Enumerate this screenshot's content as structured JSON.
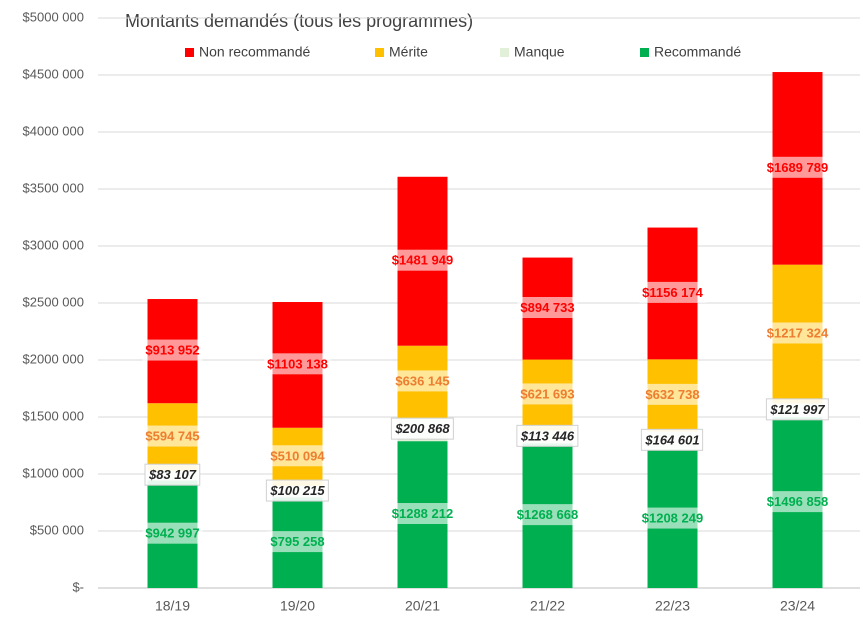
{
  "chart_data": {
    "type": "stacked_bar",
    "title": "Montants demandés (tous les programmes)",
    "categories": [
      "18/19",
      "19/20",
      "20/21",
      "21/22",
      "22/23",
      "23/24"
    ],
    "series": [
      {
        "name": "Recommandé",
        "color": "#00b050",
        "values": [
          942997,
          795258,
          1288212,
          1268668,
          1208249,
          1496858
        ],
        "value_labels": [
          "$942 997",
          "$795 258",
          "$1288 212",
          "$1268 668",
          "$1208 249",
          "$1496 858"
        ]
      },
      {
        "name": "Manque",
        "color": "#e2f0d9",
        "values": [
          83107,
          100215,
          200868,
          113446,
          164601,
          121997
        ],
        "value_labels": [
          "$83 107",
          "$100 215",
          "$200 868",
          "$113 446",
          "$164 601",
          "$121 997"
        ]
      },
      {
        "name": "Mérite",
        "color": "#ffc000",
        "values": [
          594745,
          510094,
          636145,
          621693,
          632738,
          1217324
        ],
        "value_labels": [
          "$594 745",
          "$510 094",
          "$636 145",
          "$621 693",
          "$632 738",
          "$1217 324"
        ]
      },
      {
        "name": "Non recommandé",
        "color": "#ff0000",
        "values": [
          913952,
          1103138,
          1481949,
          894733,
          1156174,
          1689789
        ],
        "value_labels": [
          "$913 952",
          "$1103 138",
          "$1481 949",
          "$894 733",
          "$1156 174",
          "$1689 789"
        ]
      }
    ],
    "ylim": [
      0,
      5000000
    ],
    "yticks": [
      {
        "value": 0,
        "label": "$-"
      },
      {
        "value": 500000,
        "label": "$500 000"
      },
      {
        "value": 1000000,
        "label": "$1000 000"
      },
      {
        "value": 1500000,
        "label": "$1500 000"
      },
      {
        "value": 2000000,
        "label": "$2000 000"
      },
      {
        "value": 2500000,
        "label": "$2500 000"
      },
      {
        "value": 3000000,
        "label": "$3000 000"
      },
      {
        "value": 3500000,
        "label": "$3500 000"
      },
      {
        "value": 4000000,
        "label": "$4000 000"
      },
      {
        "value": 4500000,
        "label": "$4500 000"
      },
      {
        "value": 5000000,
        "label": "$5000 000"
      }
    ],
    "grid": true
  }
}
